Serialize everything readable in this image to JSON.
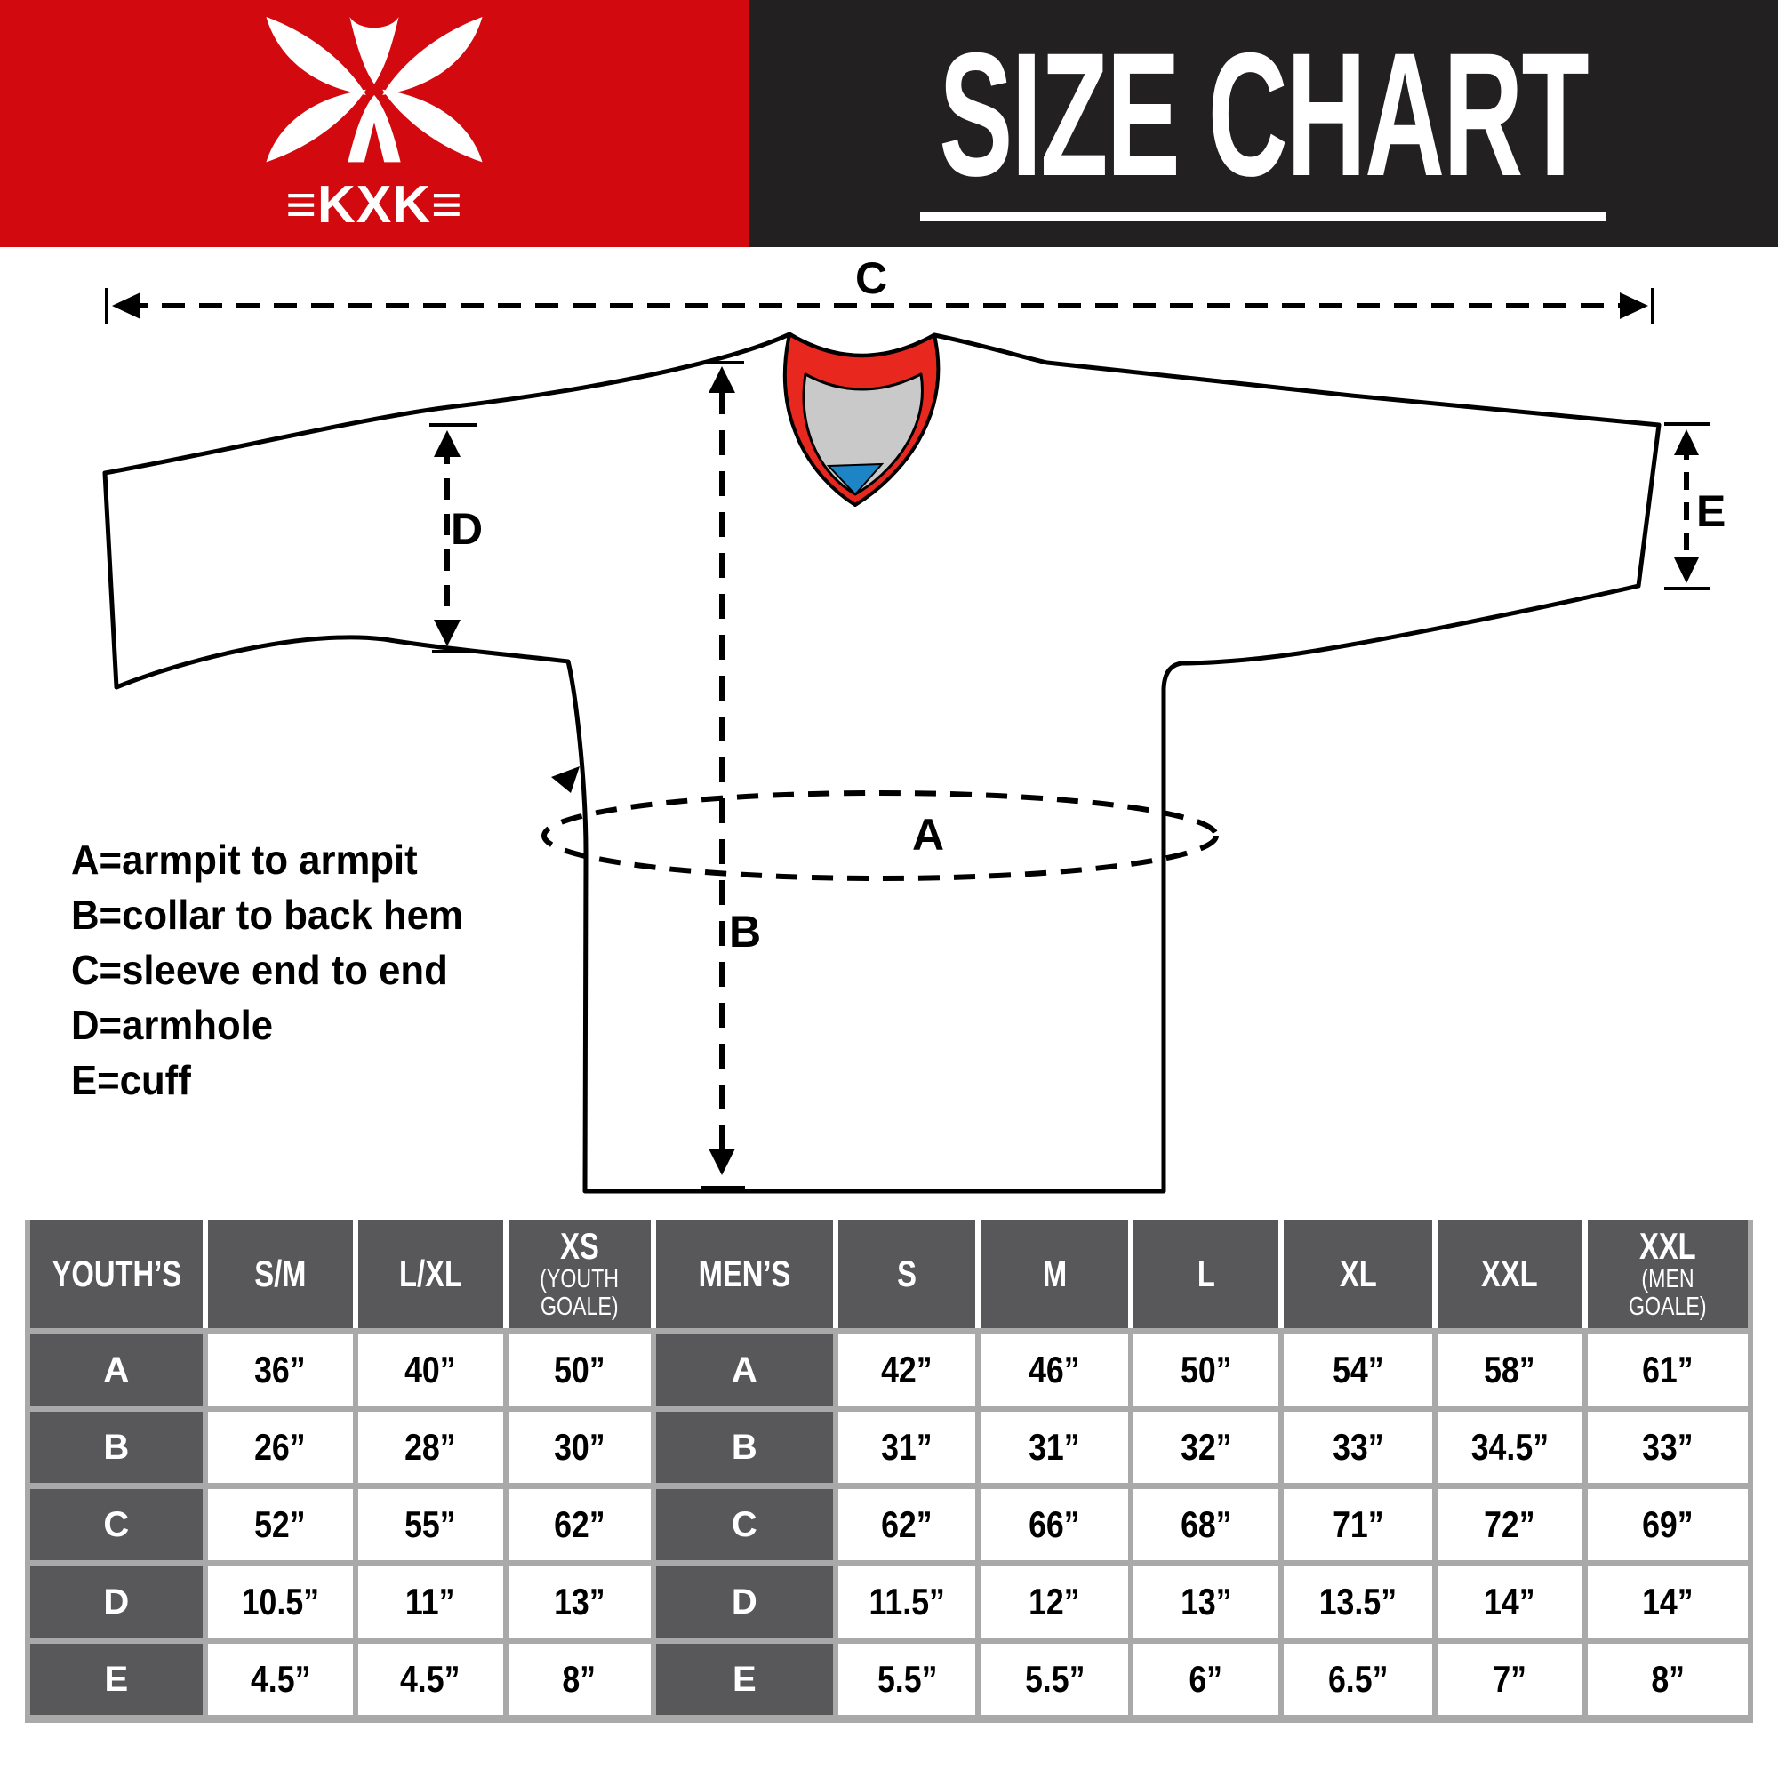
{
  "header": {
    "brand": "KXK",
    "brand_decorated": "≡KXK≡",
    "title": "SIZE CHART",
    "brand_bg": "#d20a10",
    "title_bg": "#232021"
  },
  "diagram": {
    "labels": {
      "A": "A",
      "B": "B",
      "C": "C",
      "D": "D",
      "E": "E"
    },
    "legend": [
      "A=armpit to armpit",
      "B=collar to back hem",
      "C=sleeve end to end",
      "D=armhole",
      "E=cuff"
    ],
    "colors": {
      "collar_red": "#e8281e",
      "collar_gray": "#c9c9c9",
      "collar_blue": "#1d84c5",
      "outline": "#000000"
    }
  },
  "size_table": {
    "grid_color": "#a9a9a9",
    "cell_dark": "#58585a",
    "measure_labels": [
      "A",
      "B",
      "C",
      "D",
      "E"
    ],
    "youth": {
      "header": "YOUTH’S",
      "sizes": [
        {
          "main": "S/M",
          "sub": []
        },
        {
          "main": "L/XL",
          "sub": []
        },
        {
          "main": "XS",
          "sub": [
            "(YOUTH",
            "GOALE)"
          ]
        }
      ],
      "rows": [
        [
          "36”",
          "40”",
          "50”"
        ],
        [
          "26”",
          "28”",
          "30”"
        ],
        [
          "52”",
          "55”",
          "62”"
        ],
        [
          "10.5”",
          "11”",
          "13”"
        ],
        [
          "4.5”",
          "4.5”",
          "8”"
        ]
      ]
    },
    "men": {
      "header": "MEN’S",
      "sizes": [
        {
          "main": "S",
          "sub": []
        },
        {
          "main": "M",
          "sub": []
        },
        {
          "main": "L",
          "sub": []
        },
        {
          "main": "XL",
          "sub": []
        },
        {
          "main": "XXL",
          "sub": []
        },
        {
          "main": "XXL",
          "sub": [
            "(MEN",
            "GOALE)"
          ]
        }
      ],
      "rows": [
        [
          "42”",
          "46”",
          "50”",
          "54”",
          "58”",
          "61”"
        ],
        [
          "31”",
          "31”",
          "32”",
          "33”",
          "34.5”",
          "33”"
        ],
        [
          "62”",
          "66”",
          "68”",
          "71”",
          "72”",
          "69”"
        ],
        [
          "11.5”",
          "12”",
          "13”",
          "13.5”",
          "14”",
          "14”"
        ],
        [
          "5.5”",
          "5.5”",
          "6”",
          "6.5”",
          "7”",
          "8”"
        ]
      ]
    }
  }
}
